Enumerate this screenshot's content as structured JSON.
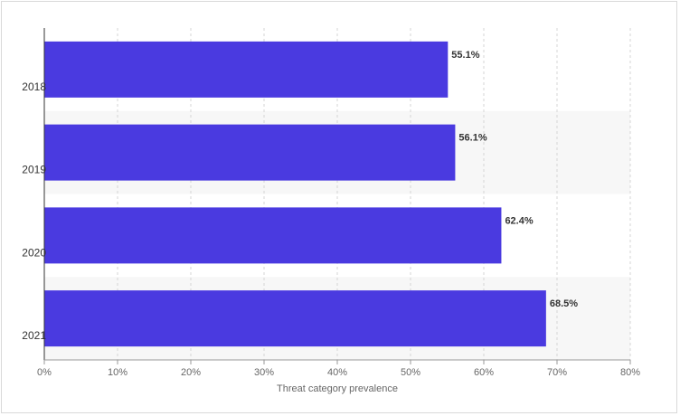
{
  "chart_data": {
    "type": "bar",
    "orientation": "horizontal",
    "categories": [
      "2018",
      "2019",
      "2020",
      "2021"
    ],
    "values": [
      55.1,
      56.1,
      62.4,
      68.5
    ],
    "data_labels": [
      "55.1%",
      "56.1%",
      "62.4%",
      "68.5%"
    ],
    "title": "",
    "xlabel": "Threat category prevalence",
    "ylabel": "",
    "xlim": [
      0,
      80
    ],
    "x_ticks": [
      "0%",
      "10%",
      "20%",
      "30%",
      "40%",
      "50%",
      "60%",
      "70%",
      "80%"
    ],
    "grid": true,
    "bar_color": "#4a3ae0",
    "band_color": "#f7f7f7"
  }
}
